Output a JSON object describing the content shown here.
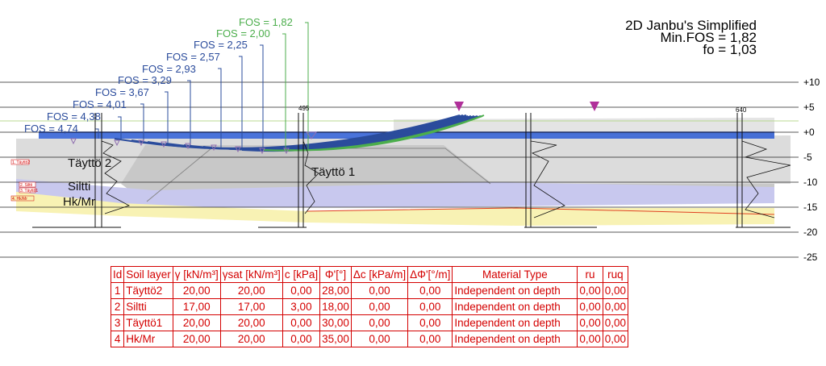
{
  "header": {
    "method": "2D Janbu's Simplified",
    "min_fos": "Min.FOS = 1,82",
    "fo": "fo = 1,03"
  },
  "fos_labels": [
    "FOS = 1,82",
    "FOS = 2,00",
    "FOS = 2,25",
    "FOS = 2,57",
    "FOS = 2,93",
    "FOS = 3,29",
    "FOS = 3,67",
    "FOS = 4,01",
    "FOS = 4,38",
    "FOS = 4,74"
  ],
  "elevation_ticks": [
    "+10",
    "+5",
    "+0",
    "-5",
    "-10",
    "-15",
    "-20",
    "-25"
  ],
  "layer_labels": {
    "tayttoe2": "Täyttö 2",
    "siltti": "Siltti",
    "hkmr": "Hk/Mr",
    "tayttoe1": "Täyttö 1"
  },
  "legend_tags": [
    "1. Täyttö2",
    "2. Siltti",
    "3. Täyttö1",
    "4. Hk/Mr"
  ],
  "probe_labels": {
    "p1": "495",
    "p2": "640"
  },
  "colors": {
    "fos_green": "#4cae4c",
    "fos_blue": "#2b4c9c",
    "water": "#2a5ad4",
    "marker": "#b0309a",
    "table": "#d40000",
    "fill_gray": "#d8d8d8",
    "fill_silt": "#c4c4ec",
    "fill_sand": "#f8f2b0"
  },
  "table": {
    "headers": [
      "Id",
      "Soil layer",
      "γ [kN/m³]",
      "γsat [kN/m³]",
      "c [kPa]",
      "Φ'[°]",
      "Δc [kPa/m]",
      "ΔΦ'[°/m]",
      "Material Type",
      "ru",
      "ruq"
    ],
    "rows": [
      [
        "1",
        "Täyttö2",
        "20,00",
        "20,00",
        "0,00",
        "28,00",
        "0,00",
        "0,00",
        "Independent on depth",
        "0,00",
        "0,00"
      ],
      [
        "2",
        "Siltti",
        "17,00",
        "17,00",
        "3,00",
        "18,00",
        "0,00",
        "0,00",
        "Independent on depth",
        "0,00",
        "0,00"
      ],
      [
        "3",
        "Täyttö1",
        "20,00",
        "20,00",
        "0,00",
        "30,00",
        "0,00",
        "0,00",
        "Independent on depth",
        "0,00",
        "0,00"
      ],
      [
        "4",
        "Hk/Mr",
        "20,00",
        "20,00",
        "0,00",
        "35,00",
        "0,00",
        "0,00",
        "Independent on depth",
        "0,00",
        "0,00"
      ]
    ]
  }
}
